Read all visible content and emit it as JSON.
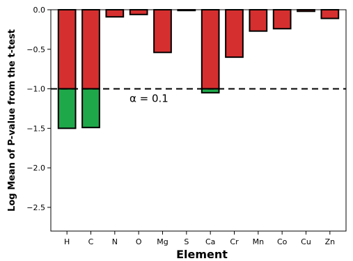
{
  "chart_data": {
    "type": "bar",
    "title": "",
    "xlabel": "Element",
    "ylabel": "Log Mean of P-value from the t-test",
    "categories": [
      "H",
      "C",
      "N",
      "O",
      "Mg",
      "S",
      "Ca",
      "Cr",
      "Mn",
      "Co",
      "Cu",
      "Zn"
    ],
    "values": [
      -1.5,
      -1.49,
      -0.09,
      -0.06,
      -0.54,
      -0.01,
      -1.05,
      -0.6,
      -0.27,
      -0.24,
      -0.02,
      -0.11
    ],
    "ylim": [
      -2.8,
      0.0
    ],
    "yticks": [
      0.0,
      -0.5,
      -1.0,
      -1.5,
      -2.0,
      -2.5
    ],
    "ytick_labels": [
      "0.0",
      "−0.5",
      "−1.0",
      "−1.5",
      "−2.0",
      "−2.5"
    ],
    "threshold": {
      "value": -1.0,
      "label": "α = 0.1",
      "style": "dashed"
    },
    "colors": {
      "above_threshold": "#d62f2f",
      "below_threshold": "#1fa84a",
      "edge": "#000000"
    },
    "grid": false,
    "legend": "none"
  }
}
